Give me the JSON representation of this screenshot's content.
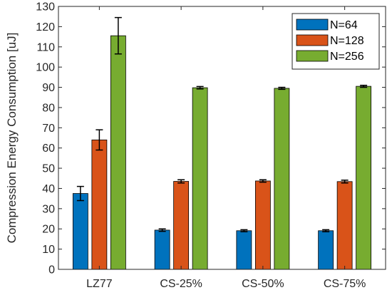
{
  "chart_data": {
    "type": "bar",
    "ylabel": "Compression Energy Consumption [uJ]",
    "xlabel": "",
    "ylim": [
      0,
      130
    ],
    "yticks": [
      0,
      10,
      20,
      30,
      40,
      50,
      60,
      70,
      80,
      90,
      100,
      110,
      120,
      130
    ],
    "grid": false,
    "legend_position": "top-right",
    "categories": [
      "LZ77",
      "CS-25%",
      "CS-50%",
      "CS-75%"
    ],
    "series": [
      {
        "name": "N=64",
        "color": "#0072BD",
        "values": [
          37.5,
          19.4,
          19.1,
          19.1
        ],
        "errors": [
          3.5,
          0.6,
          0.5,
          0.5
        ]
      },
      {
        "name": "N=128",
        "color": "#D95319",
        "values": [
          64.0,
          43.5,
          43.7,
          43.4
        ],
        "errors": [
          5.0,
          0.8,
          0.6,
          0.7
        ]
      },
      {
        "name": "N=256",
        "color": "#77AC30",
        "values": [
          115.5,
          89.8,
          89.5,
          90.5
        ],
        "errors": [
          9.0,
          0.6,
          0.5,
          0.5
        ]
      }
    ]
  }
}
